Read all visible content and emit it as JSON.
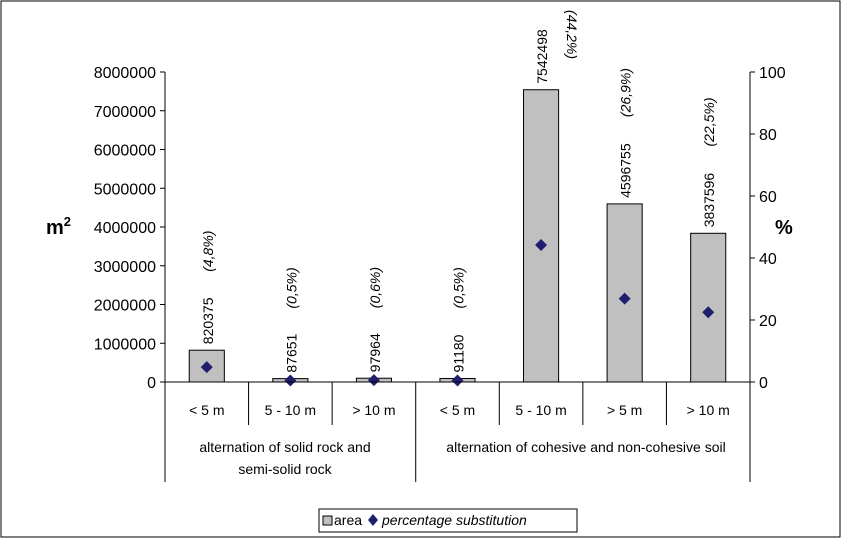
{
  "chart_data": {
    "type": "bar",
    "groups": [
      {
        "label": "alternation of  solid rock and semi-solid rock",
        "line1": "alternation of  solid rock and",
        "line2": "semi-solid rock"
      },
      {
        "label": "alternation of cohesive and non-cohesive soil",
        "line1": "alternation of cohesive and non-cohesive soil",
        "line2": ""
      }
    ],
    "categories": [
      "< 5 m",
      "5 - 10 m",
      "> 10 m",
      "< 5 m",
      "5 - 10 m",
      "> 5 m",
      "> 10 m"
    ],
    "category_group": [
      0,
      0,
      0,
      1,
      1,
      1,
      1
    ],
    "series": [
      {
        "name": "area",
        "type": "bar",
        "axis": "left",
        "values": [
          820375,
          87651,
          97964,
          91180,
          7542498,
          4596755,
          3837596
        ],
        "labels": [
          "820375",
          "87651",
          "97964",
          "91180",
          "7542498",
          "4596755",
          "3837596"
        ],
        "color": "#c0c0c0"
      },
      {
        "name": "percentage substitution",
        "type": "scatter",
        "axis": "right",
        "values": [
          4.8,
          0.5,
          0.6,
          0.5,
          44.2,
          26.9,
          22.5
        ],
        "labels": [
          "(4,8%)",
          "(0,5%)",
          "(0,6%)",
          "(0,5%)",
          "(44,2%)",
          "(26,9%)",
          "(22,5%)"
        ],
        "color": "#1f1f6e"
      }
    ],
    "y_left": {
      "label": "m2",
      "label_base": "m",
      "label_sup": "2",
      "ylim": [
        0,
        8000000
      ],
      "ticks": [
        "0",
        "1000000",
        "2000000",
        "3000000",
        "4000000",
        "5000000",
        "6000000",
        "7000000",
        "8000000"
      ]
    },
    "y_right": {
      "label": "%",
      "ylim": [
        0,
        100
      ],
      "ticks": [
        "0",
        "20",
        "40",
        "60",
        "80",
        "100"
      ]
    },
    "legend": {
      "placement": "bottom-center",
      "items": [
        "area",
        "percentage substitution"
      ]
    },
    "grid": false
  }
}
